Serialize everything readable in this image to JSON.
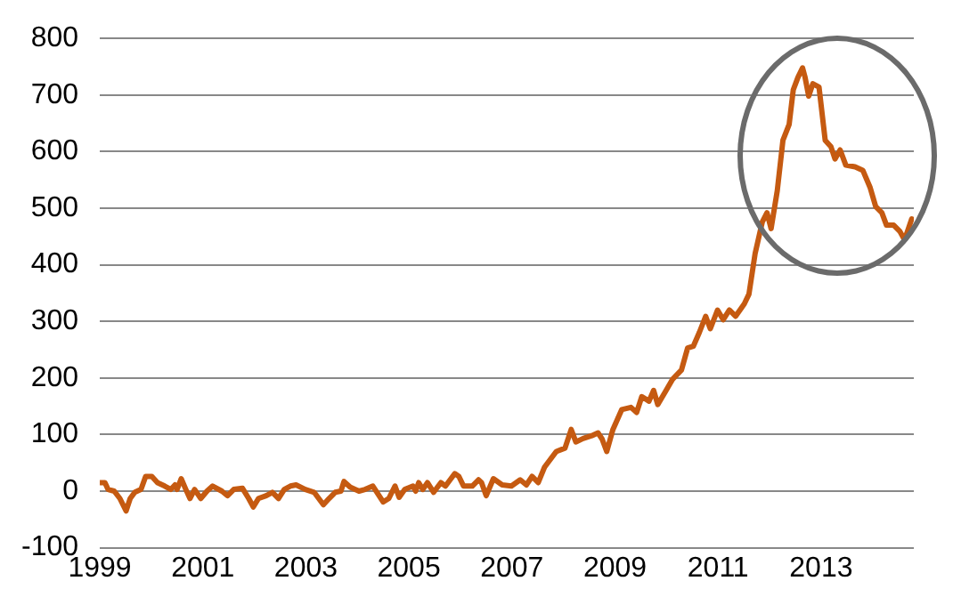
{
  "chart_data": {
    "type": "line",
    "x": [
      1999.0,
      1999.1,
      1999.16,
      1999.28,
      1999.39,
      1999.51,
      1999.59,
      1999.68,
      1999.8,
      1999.89,
      2000.01,
      2000.12,
      2000.26,
      2000.38,
      2000.46,
      2000.5,
      2000.58,
      2000.67,
      2000.75,
      2000.84,
      2000.96,
      2001.08,
      2001.19,
      2001.37,
      2001.48,
      2001.6,
      2001.77,
      2001.89,
      2001.98,
      2002.08,
      2002.23,
      2002.35,
      2002.47,
      2002.58,
      2002.7,
      2002.81,
      2002.99,
      2003.16,
      2003.34,
      2003.45,
      2003.57,
      2003.68,
      2003.74,
      2003.86,
      2004.03,
      2004.15,
      2004.3,
      2004.5,
      2004.61,
      2004.73,
      2004.81,
      2004.92,
      2005.08,
      2005.13,
      2005.19,
      2005.27,
      2005.36,
      2005.48,
      2005.62,
      2005.71,
      2005.89,
      2005.97,
      2006.06,
      2006.23,
      2006.35,
      2006.41,
      2006.5,
      2006.64,
      2006.81,
      2006.99,
      2007.16,
      2007.28,
      2007.39,
      2007.51,
      2007.63,
      2007.86,
      2008.03,
      2008.15,
      2008.24,
      2008.38,
      2008.55,
      2008.67,
      2008.75,
      2008.84,
      2008.96,
      2009.13,
      2009.31,
      2009.42,
      2009.52,
      2009.66,
      2009.75,
      2009.83,
      2009.98,
      2010.12,
      2010.29,
      2010.41,
      2010.52,
      2010.64,
      2010.76,
      2010.85,
      2010.99,
      2011.1,
      2011.22,
      2011.34,
      2011.51,
      2011.6,
      2011.72,
      2011.86,
      2011.95,
      2012.03,
      2012.15,
      2012.26,
      2012.38,
      2012.46,
      2012.55,
      2012.64,
      2012.69,
      2012.76,
      2012.84,
      2012.96,
      2013.08,
      2013.19,
      2013.27,
      2013.37,
      2013.48,
      2013.66,
      2013.81,
      2013.95,
      2014.06,
      2014.18,
      2014.27,
      2014.41,
      2014.53,
      2014.62,
      2014.76
    ],
    "series": [
      {
        "color": "#c55a11",
        "values": [
          15,
          15,
          3,
          0,
          -13,
          -35,
          -13,
          -2,
          3,
          26,
          26,
          15,
          9,
          3,
          11,
          3,
          22,
          3,
          -13,
          3,
          -13,
          0,
          9,
          0,
          -8,
          3,
          5,
          -13,
          -28,
          -13,
          -8,
          -2,
          -13,
          3,
          9,
          11,
          3,
          -2,
          -24,
          -13,
          -2,
          0,
          17,
          7,
          0,
          3,
          9,
          -19,
          -13,
          9,
          -11,
          3,
          9,
          0,
          15,
          3,
          15,
          -2,
          15,
          9,
          31,
          26,
          9,
          9,
          20,
          15,
          -8,
          22,
          11,
          9,
          20,
          11,
          26,
          15,
          42,
          70,
          76,
          109,
          87,
          93,
          98,
          103,
          92,
          70,
          109,
          144,
          148,
          139,
          167,
          159,
          178,
          153,
          176,
          198,
          214,
          253,
          256,
          281,
          309,
          287,
          320,
          303,
          320,
          309,
          331,
          348,
          420,
          476,
          492,
          464,
          531,
          620,
          648,
          709,
          731,
          748,
          731,
          698,
          720,
          714,
          620,
          609,
          587,
          603,
          576,
          573,
          567,
          537,
          503,
          492,
          470,
          470,
          459,
          444,
          481
        ]
      }
    ],
    "xlim": [
      1999,
      2014.8
    ],
    "xticks": [
      1999,
      2001,
      2003,
      2005,
      2007,
      2009,
      2011,
      2013
    ],
    "ylim": [
      -100,
      800
    ],
    "yticks": [
      -100,
      0,
      100,
      200,
      300,
      400,
      500,
      600,
      700,
      800
    ],
    "grid": "y",
    "legend": false,
    "marker": "none",
    "line_style": "solid"
  }
}
